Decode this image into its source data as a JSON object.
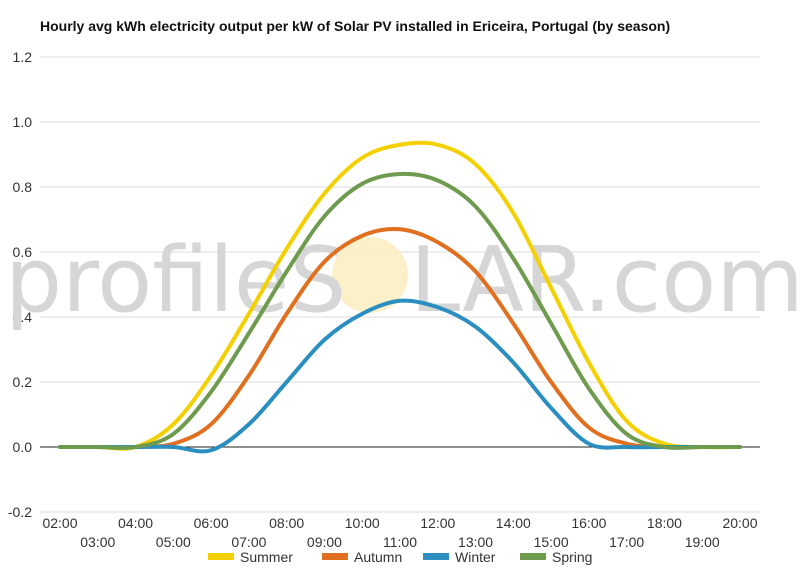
{
  "chart_data": {
    "type": "line",
    "title": "Hourly avg kWh electricity output per kW of Solar PV installed in Ericeira, Portugal (by season)",
    "xlabel": "",
    "ylabel": "",
    "x": [
      "02:00",
      "03:00",
      "04:00",
      "05:00",
      "06:00",
      "07:00",
      "08:00",
      "09:00",
      "10:00",
      "11:00",
      "12:00",
      "13:00",
      "14:00",
      "15:00",
      "16:00",
      "17:00",
      "18:00",
      "19:00",
      "20:00"
    ],
    "ylim": [
      -0.2,
      1.2
    ],
    "yticks": [
      "1.2",
      "1.0",
      "0.8",
      "0.6",
      "0.4",
      "0.2",
      "0.0",
      "-0.2"
    ],
    "grid": true,
    "legend_position": "bottom",
    "series": [
      {
        "name": "Summer",
        "color": "#F5D000",
        "values": [
          0,
          0,
          0,
          0.07,
          0.22,
          0.41,
          0.61,
          0.78,
          0.89,
          0.93,
          0.93,
          0.87,
          0.72,
          0.49,
          0.26,
          0.08,
          0.01,
          0,
          0
        ]
      },
      {
        "name": "Autumn",
        "color": "#E07020",
        "values": [
          0,
          0,
          0,
          0.01,
          0.07,
          0.22,
          0.41,
          0.57,
          0.65,
          0.67,
          0.63,
          0.54,
          0.38,
          0.2,
          0.06,
          0.01,
          0,
          0,
          0
        ]
      },
      {
        "name": "Winter",
        "color": "#2A8FC0",
        "values": [
          0,
          0,
          0,
          0,
          -0.01,
          0.07,
          0.2,
          0.33,
          0.41,
          0.45,
          0.43,
          0.37,
          0.26,
          0.12,
          0.01,
          0,
          0,
          0,
          0
        ]
      },
      {
        "name": "Spring",
        "color": "#6E9B4E",
        "values": [
          0,
          0,
          0,
          0.04,
          0.17,
          0.35,
          0.54,
          0.71,
          0.81,
          0.84,
          0.82,
          0.74,
          0.58,
          0.38,
          0.18,
          0.04,
          0,
          0,
          0
        ]
      }
    ]
  },
  "watermark": {
    "left": "profileS",
    "right": "LAR.com"
  }
}
